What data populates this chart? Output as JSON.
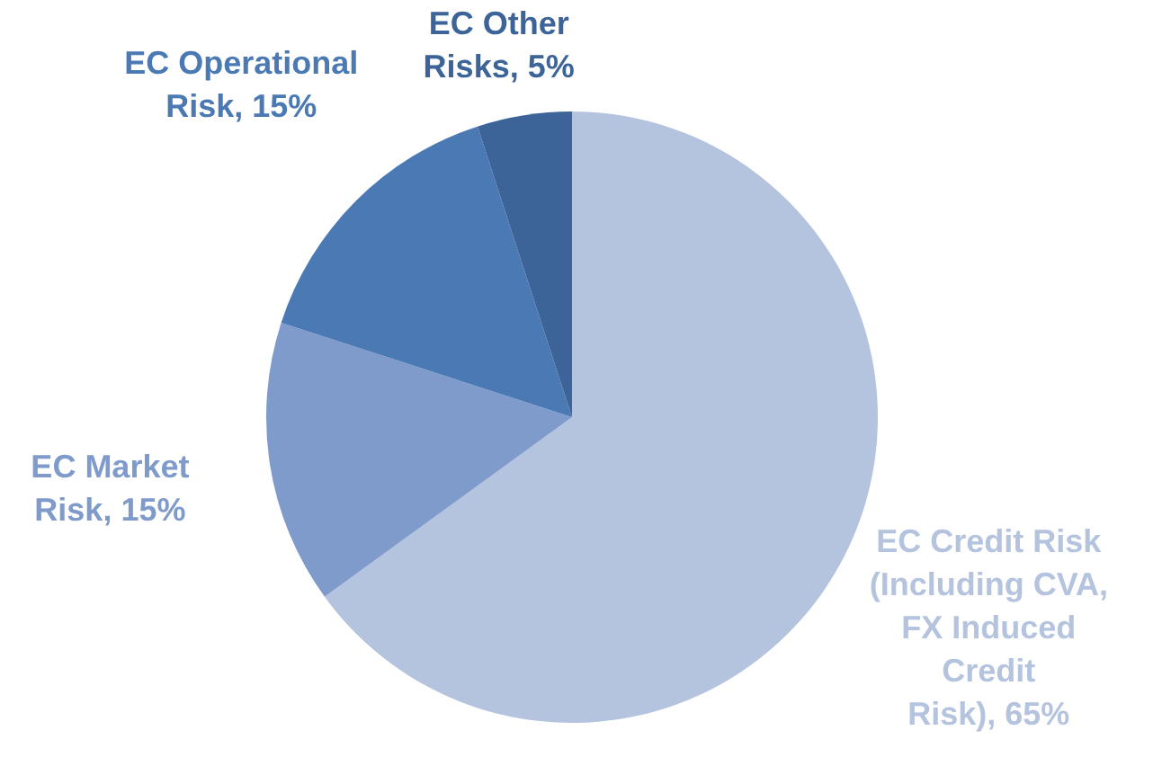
{
  "chart_data": {
    "type": "pie",
    "categories": [
      "EC Credit Risk (Including CVA, FX Induced Credit Risk)",
      "EC Market Risk",
      "EC Operational Risk",
      "EC Other Risks"
    ],
    "values": [
      65,
      15,
      15,
      5
    ],
    "value_labels": [
      ", 65%",
      ", 15%",
      ", 15%",
      ", 5%"
    ],
    "colors": [
      "#b4c3de",
      "#7f9bcb",
      "#4a79b4",
      "#3d6499"
    ],
    "legend": false
  }
}
